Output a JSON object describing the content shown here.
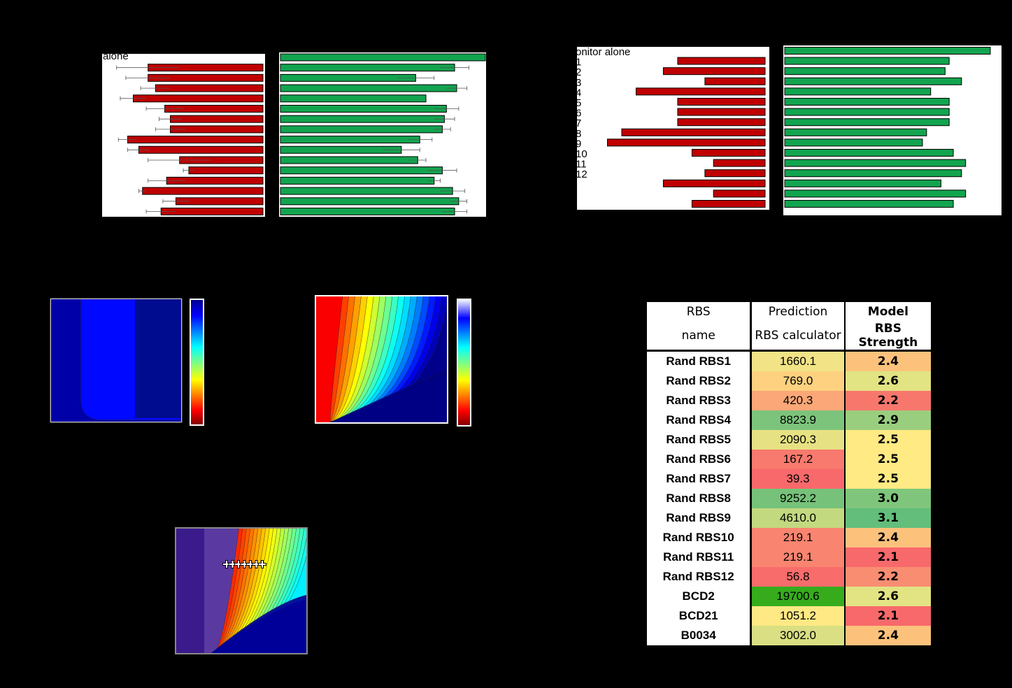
{
  "chart_data": [
    {
      "type": "bar",
      "id": "panel-top-left",
      "categories": [
        "alone",
        "",
        "",
        "",
        "",
        "",
        "",
        "",
        "",
        "",
        "",
        "",
        "",
        "",
        "",
        ""
      ],
      "series": [
        {
          "color": "#c00000",
          "values": [
            0,
            0.62,
            0.62,
            0.58,
            0.7,
            0.53,
            0.5,
            0.5,
            0.73,
            0.67,
            0.45,
            0.4,
            0.52,
            0.65,
            0.47,
            0.55
          ],
          "errors": [
            0,
            0.17,
            0.12,
            0.08,
            0.07,
            0.1,
            0.06,
            0.08,
            0.05,
            0.06,
            0.17,
            0.03,
            0.1,
            0.02,
            0.07,
            0.08
          ]
        },
        {
          "color": "#12a44f",
          "values": [
            1.0,
            0.85,
            0.66,
            0.86,
            0.71,
            0.81,
            0.8,
            0.79,
            0.68,
            0.59,
            0.67,
            0.79,
            0.75,
            0.84,
            0.87,
            0.85
          ],
          "errors": [
            0,
            0.07,
            0.09,
            0.05,
            0.0,
            0.06,
            0.05,
            0.04,
            0.06,
            0.09,
            0.04,
            0.07,
            0.03,
            0.06,
            0.04,
            0.06
          ]
        }
      ]
    },
    {
      "type": "bar",
      "id": "panel-top-right",
      "categories": [
        "onitor alone",
        "1",
        "2",
        "3",
        "4",
        "5",
        "6",
        "7",
        "8",
        "9",
        "10",
        "11",
        "12",
        "",
        "",
        ""
      ],
      "series": [
        {
          "color": "#c00000",
          "values": [
            0,
            0.61,
            0.71,
            0.42,
            0.9,
            0.61,
            0.61,
            0.61,
            1.0,
            1.1,
            0.51,
            0.36,
            0.42,
            0.71,
            0.36,
            0.51
          ]
        },
        {
          "color": "#12a44f",
          "values": [
            1.0,
            0.8,
            0.78,
            0.86,
            0.71,
            0.8,
            0.8,
            0.8,
            0.69,
            0.67,
            0.82,
            0.88,
            0.86,
            0.76,
            0.88,
            0.82
          ]
        }
      ]
    },
    {
      "type": "heatmap",
      "id": "heatmap-1",
      "colormap": "jet"
    },
    {
      "type": "heatmap",
      "id": "heatmap-2",
      "colormap": "jet"
    },
    {
      "type": "heatmap",
      "id": "heatmap-3",
      "colormap": "jet",
      "markers": 7
    },
    {
      "type": "table",
      "id": "rbs-table",
      "columns": [
        {
          "line1": "RBS",
          "line2": "name"
        },
        {
          "line1": "Prediction",
          "line2": "RBS calculator"
        },
        {
          "line1": "Model",
          "line2": "RBS Strength"
        }
      ],
      "rows": [
        {
          "name": "Rand RBS1",
          "prediction": "1660.1",
          "strength": "2.4",
          "pcolor": "#f1e386",
          "scolor": "#fcc27c"
        },
        {
          "name": "Rand RBS2",
          "prediction": "769.0",
          "strength": "2.6",
          "pcolor": "#fdd17f",
          "scolor": "#e2e383"
        },
        {
          "name": "Rand RBS3",
          "prediction": "420.3",
          "strength": "2.2",
          "pcolor": "#fba777",
          "scolor": "#f8776d"
        },
        {
          "name": "Rand RBS4",
          "prediction": "8823.9",
          "strength": "2.9",
          "pcolor": "#7cc47b",
          "scolor": "#99ce7e"
        },
        {
          "name": "Rand RBS5",
          "prediction": "2090.3",
          "strength": "2.5",
          "pcolor": "#e6e283",
          "scolor": "#ffea84"
        },
        {
          "name": "Rand RBS6",
          "prediction": "167.2",
          "strength": "2.5",
          "pcolor": "#f8796e",
          "scolor": "#ffea84"
        },
        {
          "name": "Rand RBS7",
          "prediction": "39.3",
          "strength": "2.5",
          "pcolor": "#f8696b",
          "scolor": "#ffea84"
        },
        {
          "name": "Rand RBS8",
          "prediction": "9252.2",
          "strength": "3.0",
          "pcolor": "#76c27a",
          "scolor": "#7fc67c"
        },
        {
          "name": "Rand RBS9",
          "prediction": "4610.0",
          "strength": "3.1",
          "pcolor": "#c3d980",
          "scolor": "#63be7b"
        },
        {
          "name": "Rand RBS10",
          "prediction": "219.1",
          "strength": "2.4",
          "pcolor": "#f98570",
          "scolor": "#fcc27c"
        },
        {
          "name": "Rand RBS11",
          "prediction": "219.1",
          "strength": "2.1",
          "pcolor": "#f98570",
          "scolor": "#f8696b"
        },
        {
          "name": "Rand RBS12",
          "prediction": "56.8",
          "strength": "2.2",
          "pcolor": "#f86c6b",
          "scolor": "#f98d72"
        },
        {
          "name": "BCD2",
          "prediction": "19700.6",
          "strength": "2.6",
          "pcolor": "#36ac1c",
          "scolor": "#e2e383"
        },
        {
          "name": "BCD21",
          "prediction": "1051.2",
          "strength": "2.1",
          "pcolor": "#fee984",
          "scolor": "#f8696b"
        },
        {
          "name": "B0034",
          "prediction": "3002.0",
          "strength": "2.4",
          "pcolor": "#d9df82",
          "scolor": "#fcc27c"
        }
      ]
    }
  ]
}
